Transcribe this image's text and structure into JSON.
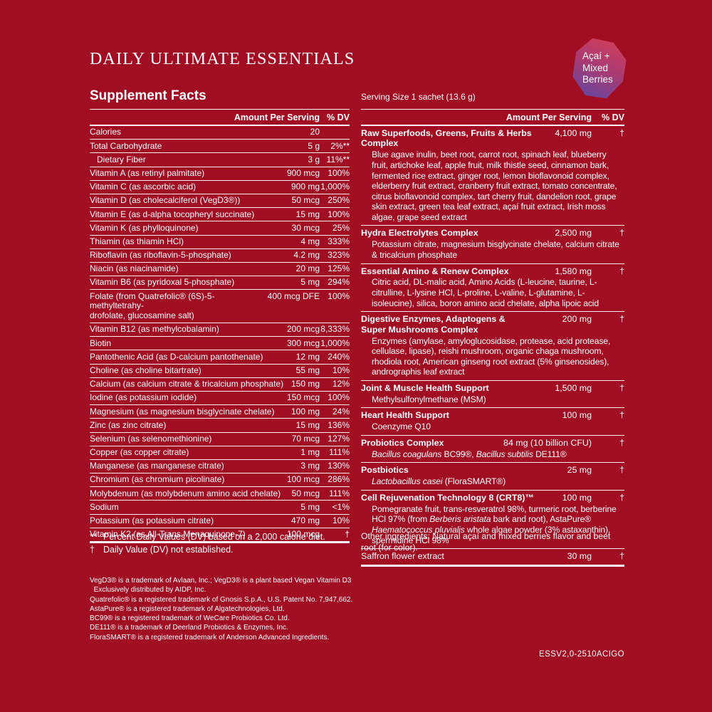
{
  "colors": {
    "background": "#a10d22",
    "text": "#ffffff",
    "hairline": "rgba(255,255,255,0.92)",
    "badge_gradient": [
      "#d23f5a",
      "#a93a74",
      "#5c48a4"
    ]
  },
  "header": {
    "title": "DAILY ULTIMATE ESSENTIALS",
    "badge_lines": [
      "Açaí +",
      "Mixed",
      "Berries"
    ]
  },
  "supplement_facts": {
    "heading": "Supplement Facts",
    "serving_size": "Serving Size 1 sachet (13.6 g)",
    "columns": {
      "amount": "Amount Per Serving",
      "dv": "% DV"
    }
  },
  "left_table": {
    "rows": [
      {
        "label": "Calories",
        "amount": "20",
        "dv": ""
      },
      {
        "label": "Total Carbohydrate",
        "amount": "5 g",
        "dv": "2%**"
      },
      {
        "label": "Dietary Fiber",
        "amount": "3 g",
        "dv": "11%**",
        "indent": true
      },
      {
        "label": "Vitamin A (as retinyl palmitate)",
        "amount": "900 mcg",
        "dv": "100%"
      },
      {
        "label": "Vitamin C (as ascorbic acid)",
        "amount": "900 mg",
        "dv": "1,000%"
      },
      {
        "label": "Vitamin D (as cholecalciferol (VegD3®))",
        "amount": "50 mcg",
        "dv": "250%"
      },
      {
        "label": "Vitamin E (as d-alpha tocopheryl succinate)",
        "amount": "15 mg",
        "dv": "100%"
      },
      {
        "label": "Vitamin K (as phylloquinone)",
        "amount": "30 mcg",
        "dv": "25%"
      },
      {
        "label": "Thiamin (as thiamin HCl)",
        "amount": "4 mg",
        "dv": "333%"
      },
      {
        "label": "Riboflavin (as riboflavin-5-phosphate)",
        "amount": "4.2 mg",
        "dv": "323%"
      },
      {
        "label": "Niacin (as niacinamide)",
        "amount": "20 mg",
        "dv": "125%"
      },
      {
        "label": "Vitamin B6 (as pyridoxal 5-phosphate)",
        "amount": "5 mg",
        "dv": "294%"
      },
      {
        "label": "Folate (from Quatrefolic® (6S)-5-methyltetrahy-\ndrofolate, glucosamine salt)",
        "amount": "400 mcg DFE",
        "dv": "100%"
      },
      {
        "label": "Vitamin B12 (as methylcobalamin)",
        "amount": "200 mcg",
        "dv": "8,333%"
      },
      {
        "label": "Biotin",
        "amount": "300 mcg",
        "dv": "1,000%"
      },
      {
        "label": "Pantothenic Acid (as D-calcium pantothenate)",
        "amount": "12 mg",
        "dv": "240%"
      },
      {
        "label": "Choline (as choline bitartrate)",
        "amount": "55 mg",
        "dv": "10%"
      },
      {
        "label": "Calcium (as calcium citrate & tricalcium phosphate)",
        "amount": "150 mg",
        "dv": "12%"
      },
      {
        "label": "Iodine (as potassium iodide)",
        "amount": "150 mcg",
        "dv": "100%"
      },
      {
        "label": "Magnesium (as magnesium bisglycinate chelate)",
        "amount": "100 mg",
        "dv": "24%"
      },
      {
        "label": "Zinc (as zinc citrate)",
        "amount": "15 mg",
        "dv": "136%"
      },
      {
        "label": "Selenium (as selenomethionine)",
        "amount": "70 mcg",
        "dv": "127%"
      },
      {
        "label": "Copper (as copper citrate)",
        "amount": "1 mg",
        "dv": "111%"
      },
      {
        "label": "Manganese (as manganese citrate)",
        "amount": "3 mg",
        "dv": "130%"
      },
      {
        "label": "Chromium (as chromium picolinate)",
        "amount": "100 mcg",
        "dv": "286%"
      },
      {
        "label": "Molybdenum (as molybdenum amino acid chelate)",
        "amount": "50 mcg",
        "dv": "111%"
      },
      {
        "label": "Sodium",
        "amount": "5 mg",
        "dv": "<1%"
      },
      {
        "label": "Potassium (as potassium citrate)",
        "amount": "470 mg",
        "dv": "10%"
      },
      {
        "label": "Vitamin K2 (as All-Trans Menaquinone-7)",
        "amount": "100 mcg",
        "dv": "†"
      }
    ]
  },
  "right_table": {
    "sections": [
      {
        "name": "Raw Superfoods, Greens, Fruits & Herbs Complex",
        "amount": "4,100 mg",
        "dv": "†",
        "desc": "Blue agave inulin, beet root, carrot root, spinach leaf, blueberry fruit, artichoke leaf, apple fruit, milk thistle seed, cinnamon bark, fermented rice extract, ginger root, lemon bioflavonoid complex, elderberry fruit extract, cranberry fruit extract, tomato concentrate, citrus bioflavonoid complex, tart cherry fruit, dandelion root, grape skin extract, green tea leaf extract, açaí fruit extract, Irish moss algae, grape seed extract"
      },
      {
        "name": "Hydra Electrolytes Complex",
        "amount": "2,500 mg",
        "dv": "†",
        "desc": "Potassium citrate, magnesium bisglycinate chelate, calcium citrate & tricalcium phosphate"
      },
      {
        "name": "Essential Amino & Renew Complex",
        "amount": "1,580 mg",
        "dv": "†",
        "desc": "Citric acid, DL-malic acid, Amino Acids (L-leucine, taurine, L-citrulline, L-lysine HCl, L-proline, L-valine, L-glutamine, L-isoleucine), silica, boron amino acid chelate, alpha lipoic acid"
      },
      {
        "name": "Digestive Enzymes, Adaptogens &\nSuper Mushrooms Complex",
        "amount": "200 mg",
        "dv": "†",
        "desc": "Enzymes (amylase, amyloglucosidase, protease, acid protease, cellulase, lipase), reishi mushroom, organic chaga mushroom, rhodiola root, American ginseng root extract (5% ginsenosides), andrographis leaf extract"
      },
      {
        "name": "Joint & Muscle Health Support",
        "amount": "1,500 mg",
        "dv": "†",
        "desc": "Methylsulfonylmethane (MSM)"
      },
      {
        "name": "Heart Health Support",
        "amount": "100 mg",
        "dv": "†",
        "desc": "Coenzyme Q10"
      },
      {
        "name": "Probiotics Complex",
        "amount": "84 mg (10 billion CFU)",
        "dv": "†",
        "desc": "*Bacillus coagulans* BC99®, *Bacillus subtilis* DE111®"
      },
      {
        "name": "Postbiotics",
        "amount": "25 mg",
        "dv": "†",
        "desc": "*Lactobacillus casei* (FloraSMART®)"
      },
      {
        "name": "Cell Rejuvenation Technology 8 (CRT8)™",
        "amount": "100 mg",
        "dv": "†",
        "desc": "Pomegranate fruit, trans-resveratrol 98%, turmeric root, berberine HCl 97% (from *Berberis aristata* bark and root), AstaPure® *Haematococcus pluvialis* whole algae powder (3% astaxanthin), spermidine HCl 98%"
      },
      {
        "name": "Saffron flower extract",
        "amount": "30 mg",
        "dv": "†",
        "regular": true
      }
    ]
  },
  "footnotes": {
    "left": [
      {
        "sym": "**",
        "text": "Percent Daily Values (DV) based on a 2,000 calorie diet."
      },
      {
        "sym": "†",
        "text": "Daily Value (DV) not established."
      }
    ],
    "right": "Other ingredients: Natural açaí and mixed berries flavor and beet root (for color)."
  },
  "trademarks": [
    "VegD3® is a trademark of Avlaan, Inc.; VegD3® is a plant based Vegan Vitamin D3",
    "  Exclusively distributed by AIDP, Inc.",
    "Quatrefolic® is a registered trademark of Gnosis S.p.A., U.S. Patent No. 7,947,662.",
    "AstaPure® is a registered trademark of Algatechnologies, Ltd.",
    "BC99® is a registered trademark of WeCare Probiotics Co. Ltd.",
    "DE111® is a trademark of Deerland Probiotics & Enzymes, Inc.",
    "FloraSMART® is a registered trademark of Anderson Advanced Ingredients."
  ],
  "product_code": "ESSV2,0-2510ACIGO"
}
